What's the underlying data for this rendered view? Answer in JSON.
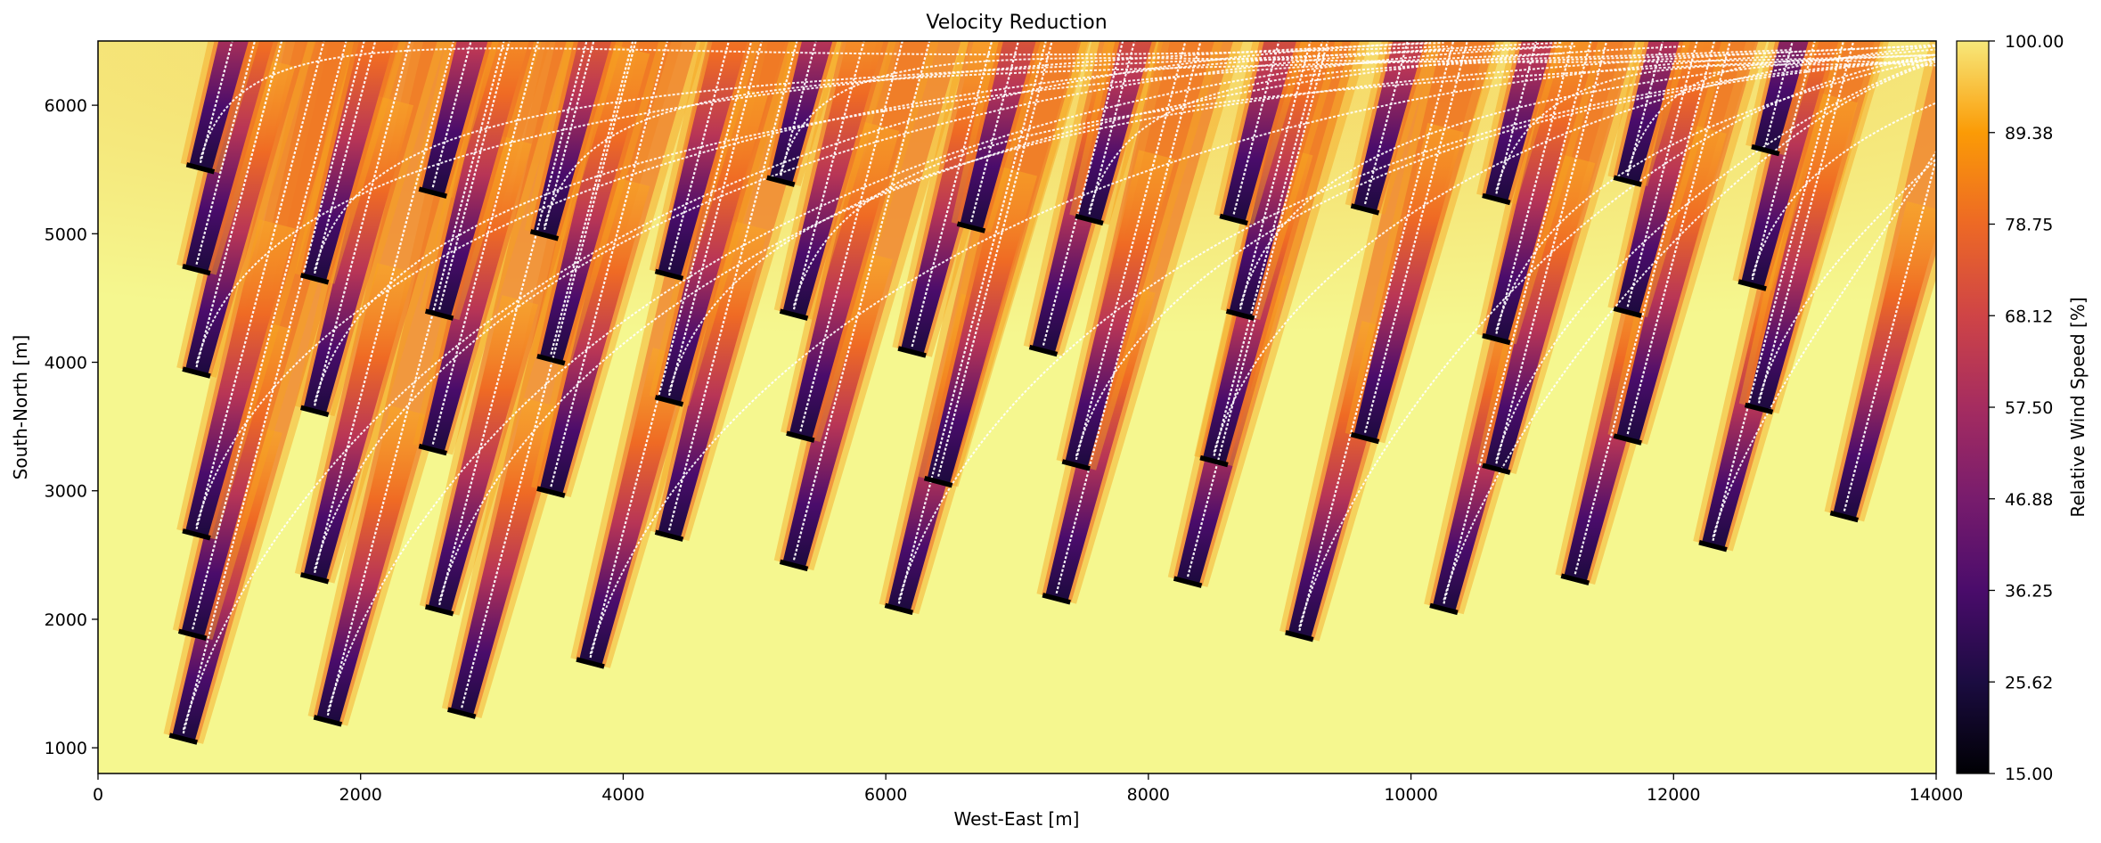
{
  "chart_data": {
    "type": "heatmap",
    "title": "Velocity Reduction",
    "xlabel": "West-East [m]",
    "ylabel": "South-North [m]",
    "xlim": [
      0,
      14000
    ],
    "ylim": [
      800,
      6500
    ],
    "xticks": [
      0,
      2000,
      4000,
      6000,
      8000,
      10000,
      12000,
      14000
    ],
    "yticks": [
      1000,
      2000,
      3000,
      4000,
      5000,
      6000
    ],
    "colorbar": {
      "label": "Relative Wind Speed [%]",
      "min": 15.0,
      "max": 100.0,
      "colormap": "inferno",
      "ticks": [
        "15.00",
        "25.62",
        "36.25",
        "46.88",
        "57.50",
        "68.12",
        "78.75",
        "89.38",
        "100.00"
      ]
    },
    "wake_direction_note": "wakes extend toward north-north-east",
    "turbines": [
      {
        "x": 650,
        "y": 1070
      },
      {
        "x": 1750,
        "y": 1210
      },
      {
        "x": 2770,
        "y": 1270
      },
      {
        "x": 3750,
        "y": 1660
      },
      {
        "x": 720,
        "y": 1880
      },
      {
        "x": 1650,
        "y": 2320
      },
      {
        "x": 2600,
        "y": 2070
      },
      {
        "x": 4350,
        "y": 2650
      },
      {
        "x": 5300,
        "y": 2420
      },
      {
        "x": 6100,
        "y": 2080
      },
      {
        "x": 7300,
        "y": 2160
      },
      {
        "x": 8300,
        "y": 2290
      },
      {
        "x": 9150,
        "y": 1870
      },
      {
        "x": 10250,
        "y": 2080
      },
      {
        "x": 11250,
        "y": 2310
      },
      {
        "x": 12300,
        "y": 2570
      },
      {
        "x": 13300,
        "y": 2800
      },
      {
        "x": 750,
        "y": 2660
      },
      {
        "x": 1650,
        "y": 3620
      },
      {
        "x": 2550,
        "y": 3320
      },
      {
        "x": 3450,
        "y": 2990
      },
      {
        "x": 4350,
        "y": 3700
      },
      {
        "x": 5350,
        "y": 3420
      },
      {
        "x": 6400,
        "y": 3070
      },
      {
        "x": 7450,
        "y": 3200
      },
      {
        "x": 8500,
        "y": 3230
      },
      {
        "x": 9650,
        "y": 3410
      },
      {
        "x": 10650,
        "y": 3170
      },
      {
        "x": 11650,
        "y": 3400
      },
      {
        "x": 12650,
        "y": 3640
      },
      {
        "x": 750,
        "y": 3920
      },
      {
        "x": 2600,
        "y": 4370
      },
      {
        "x": 3450,
        "y": 4020
      },
      {
        "x": 5300,
        "y": 4370
      },
      {
        "x": 6200,
        "y": 4080
      },
      {
        "x": 7200,
        "y": 4090
      },
      {
        "x": 8700,
        "y": 4370
      },
      {
        "x": 10650,
        "y": 4180
      },
      {
        "x": 11650,
        "y": 4390
      },
      {
        "x": 12600,
        "y": 4600
      },
      {
        "x": 750,
        "y": 4720
      },
      {
        "x": 1650,
        "y": 4650
      },
      {
        "x": 3400,
        "y": 4990
      },
      {
        "x": 4350,
        "y": 4680
      },
      {
        "x": 6650,
        "y": 5050
      },
      {
        "x": 7550,
        "y": 5110
      },
      {
        "x": 8650,
        "y": 5110
      },
      {
        "x": 9650,
        "y": 5190
      },
      {
        "x": 10650,
        "y": 5270
      },
      {
        "x": 11650,
        "y": 5410
      },
      {
        "x": 12700,
        "y": 5650
      },
      {
        "x": 780,
        "y": 5510
      },
      {
        "x": 2550,
        "y": 5320
      },
      {
        "x": 5200,
        "y": 5410
      }
    ]
  }
}
